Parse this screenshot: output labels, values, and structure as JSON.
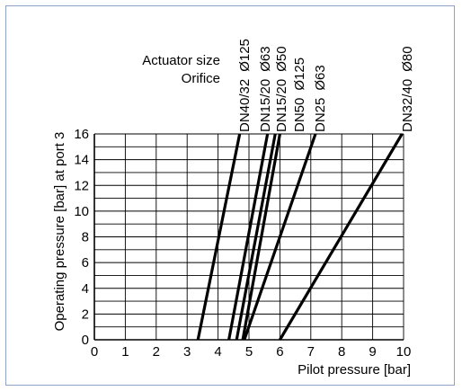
{
  "chart_data": {
    "type": "line",
    "xlabel": "Pilot pressure [bar]",
    "ylabel": "Operating pressure [bar] at port 3",
    "xlim": [
      0,
      10
    ],
    "ylim": [
      0,
      16
    ],
    "xticks": [
      "0",
      "1",
      "2",
      "3",
      "4",
      "5",
      "6",
      "7",
      "8",
      "9",
      "10"
    ],
    "yticks": [
      "0",
      "2",
      "4",
      "6",
      "8",
      "10",
      "12",
      "14",
      "16"
    ],
    "grid": true,
    "header_labels": {
      "row1": "Actuator size",
      "row2": "Orifice"
    },
    "series": [
      {
        "orifice": "DN40/32",
        "actuator": "Ø125",
        "points": [
          [
            3.35,
            0
          ],
          [
            4.7,
            16
          ]
        ]
      },
      {
        "orifice": "DN15/20",
        "actuator": "Ø63",
        "points": [
          [
            4.35,
            0
          ],
          [
            5.6,
            16
          ]
        ]
      },
      {
        "orifice": "DN15/20",
        "actuator": "Ø50",
        "points": [
          [
            4.6,
            0
          ],
          [
            5.85,
            16
          ]
        ]
      },
      {
        "orifice": "DN50",
        "actuator": "Ø125",
        "points": [
          [
            4.8,
            0
          ],
          [
            6.0,
            16
          ]
        ]
      },
      {
        "orifice": "DN25",
        "actuator": "Ø63",
        "points": [
          [
            4.85,
            0
          ],
          [
            7.15,
            16
          ]
        ]
      },
      {
        "orifice": "DN32/40",
        "actuator": "Ø80",
        "points": [
          [
            6.0,
            0
          ],
          [
            9.95,
            16
          ]
        ]
      }
    ]
  }
}
